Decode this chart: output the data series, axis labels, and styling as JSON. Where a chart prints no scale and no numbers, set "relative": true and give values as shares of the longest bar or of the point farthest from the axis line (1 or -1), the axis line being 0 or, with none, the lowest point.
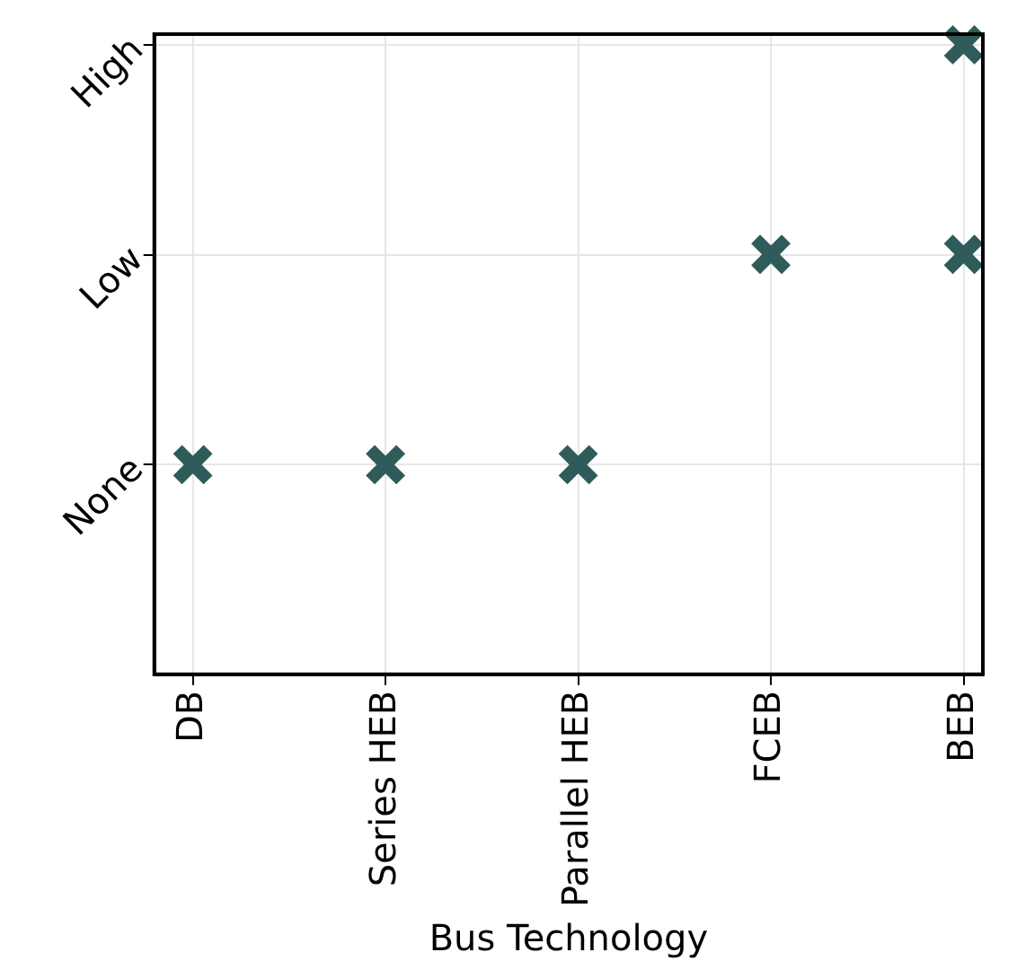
{
  "chart_data": {
    "type": "scatter",
    "xlabel": "Bus Technology",
    "categories": [
      "DB",
      "Series HEB",
      "Parallel HEB",
      "FCEB",
      "BEB"
    ],
    "y_categories": [
      "High",
      "Low",
      "None"
    ],
    "relative": true,
    "series": [
      {
        "color": "#2f5b5b",
        "values": [
          0.333,
          0.333,
          0.333,
          0.667,
          0.667
        ]
      },
      {
        "color": "#2f5b5b",
        "values": [
          null,
          null,
          null,
          null,
          1
        ]
      }
    ],
    "grid": true,
    "marker": "cross",
    "legend": false
  }
}
